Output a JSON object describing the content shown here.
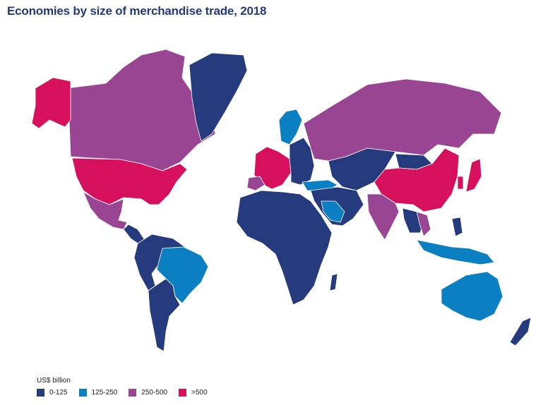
{
  "title": "Economies by size of merchandise trade, 2018",
  "legend": {
    "title": "US$ billion",
    "items": [
      {
        "label": "0-125",
        "color": "#263b7e"
      },
      {
        "label": "125-250",
        "color": "#0a7fc1"
      },
      {
        "label": "250-500",
        "color": "#9a4594"
      },
      {
        "label": ">500",
        "color": "#d6105c"
      }
    ]
  }
}
